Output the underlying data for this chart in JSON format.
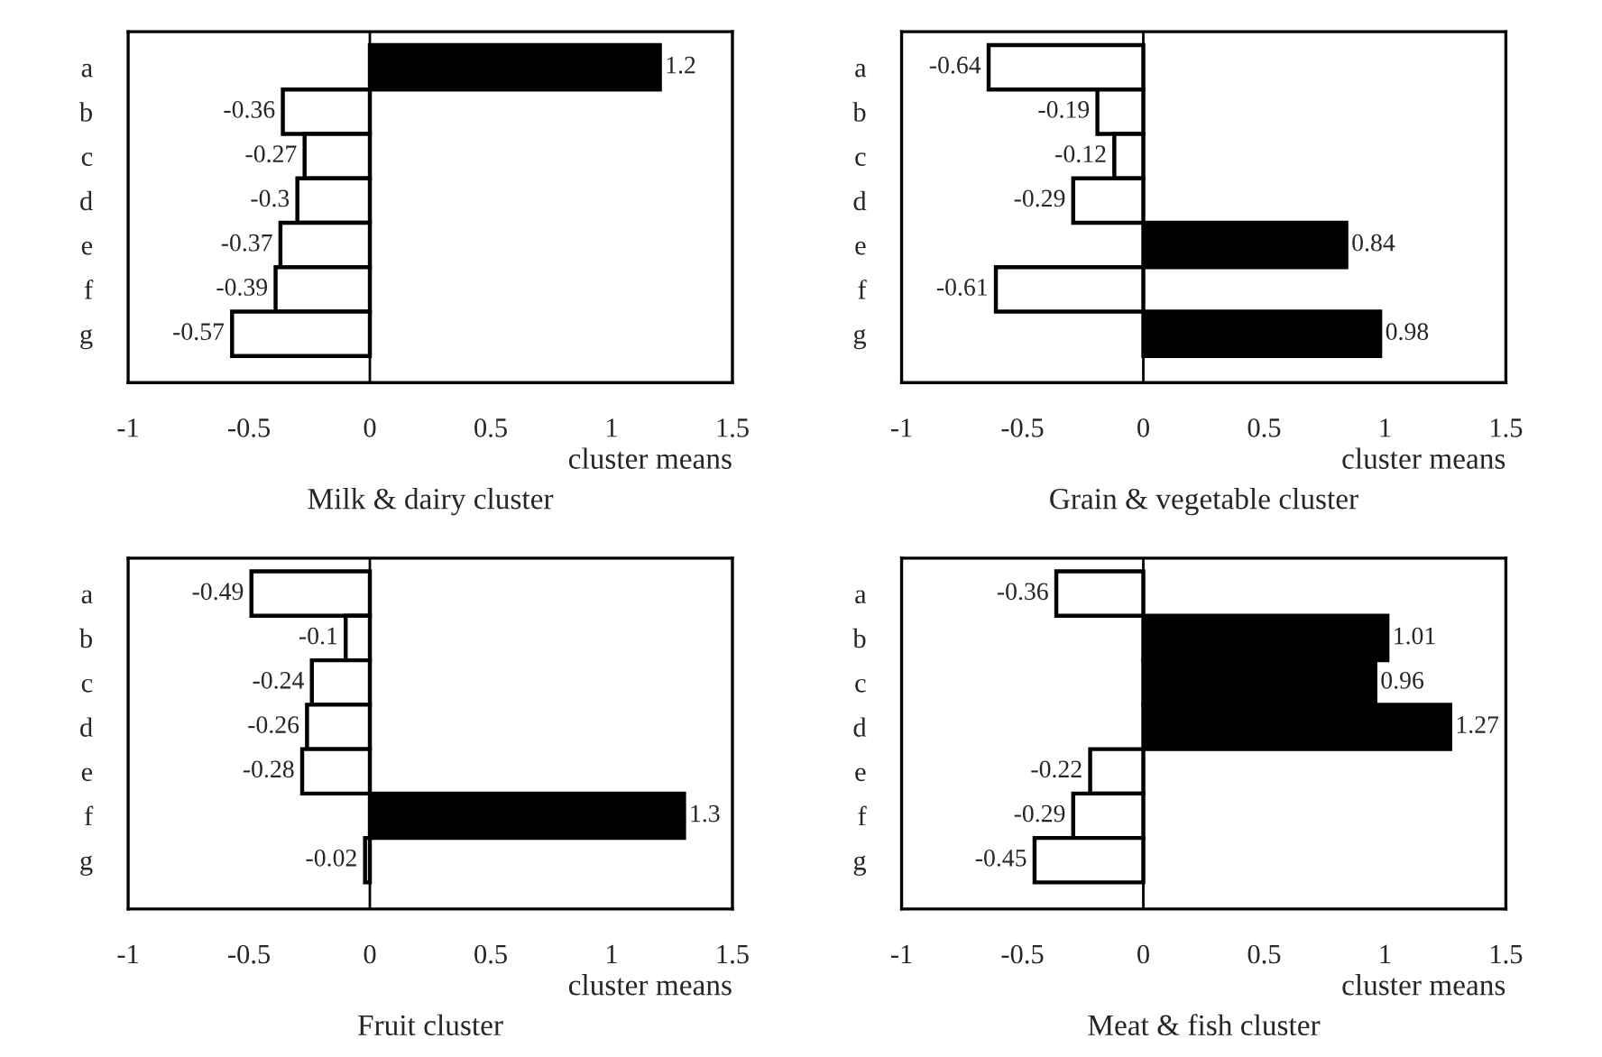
{
  "chart_data": [
    {
      "type": "bar",
      "orientation": "horizontal",
      "title": "Milk & dairy cluster",
      "xlabel": "cluster means",
      "categories": [
        "a",
        "b",
        "c",
        "d",
        "e",
        "f",
        "g"
      ],
      "values": [
        1.2,
        -0.36,
        -0.27,
        -0.3,
        -0.37,
        -0.39,
        -0.57
      ],
      "colors": [
        "#000000",
        "#ffffff",
        "#ffffff",
        "#ffffff",
        "#ffffff",
        "#ffffff",
        "#ffffff"
      ],
      "xlim": [
        -1,
        1.5
      ],
      "xticks": [
        -1,
        -0.5,
        0,
        0.5,
        1,
        1.5
      ],
      "data_labels": true
    },
    {
      "type": "bar",
      "orientation": "horizontal",
      "title": "Grain & vegetable cluster",
      "xlabel": "cluster means",
      "categories": [
        "a",
        "b",
        "c",
        "d",
        "e",
        "f",
        "g"
      ],
      "values": [
        -0.64,
        -0.19,
        -0.12,
        -0.29,
        0.84,
        -0.61,
        0.98
      ],
      "colors": [
        "#ffffff",
        "#ffffff",
        "#ffffff",
        "#ffffff",
        "#000000",
        "#ffffff",
        "#000000"
      ],
      "xlim": [
        -1,
        1.5
      ],
      "xticks": [
        -1,
        -0.5,
        0,
        0.5,
        1,
        1.5
      ],
      "data_labels": true
    },
    {
      "type": "bar",
      "orientation": "horizontal",
      "title": "Fruit cluster",
      "xlabel": "cluster means",
      "categories": [
        "a",
        "b",
        "c",
        "d",
        "e",
        "f",
        "g"
      ],
      "values": [
        -0.49,
        -0.1,
        -0.24,
        -0.26,
        -0.28,
        1.3,
        -0.02
      ],
      "colors": [
        "#ffffff",
        "#ffffff",
        "#ffffff",
        "#ffffff",
        "#ffffff",
        "#000000",
        "#ffffff"
      ],
      "xlim": [
        -1,
        1.5
      ],
      "xticks": [
        -1,
        -0.5,
        0,
        0.5,
        1,
        1.5
      ],
      "data_labels": true
    },
    {
      "type": "bar",
      "orientation": "horizontal",
      "title": "Meat & fish cluster",
      "xlabel": "cluster means",
      "categories": [
        "a",
        "b",
        "c",
        "d",
        "e",
        "f",
        "g"
      ],
      "values": [
        -0.36,
        1.01,
        0.96,
        1.27,
        -0.22,
        -0.29,
        -0.45
      ],
      "colors": [
        "#ffffff",
        "#000000",
        "#000000",
        "#000000",
        "#ffffff",
        "#ffffff",
        "#ffffff"
      ],
      "xlim": [
        -1,
        1.5
      ],
      "xticks": [
        -1,
        -0.5,
        0,
        0.5,
        1,
        1.5
      ],
      "data_labels": true
    }
  ]
}
